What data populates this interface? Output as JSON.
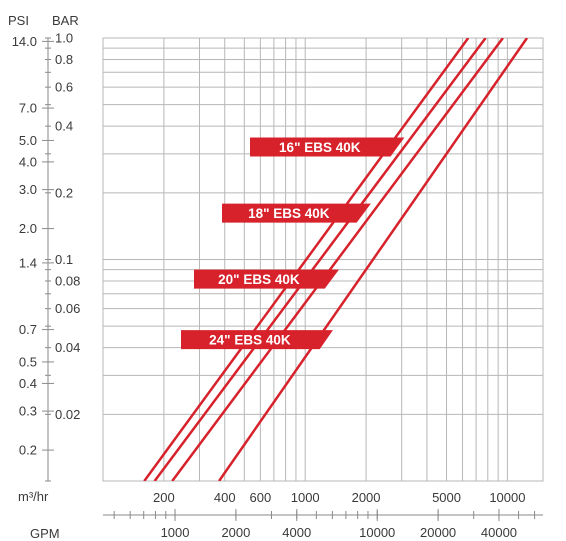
{
  "chart_data": {
    "type": "line",
    "x_scale": "log",
    "y_scale": "log",
    "grid": true,
    "x_unit_top": "m³/hr",
    "x_unit_bottom": "GPM",
    "y_unit_left": "PSI",
    "y_unit_right": "BAR",
    "xlim_m3hr": [
      100,
      15000
    ],
    "ylim_bar": [
      0.01,
      1.0
    ],
    "bar_ticks": [
      {
        "value": 1.0,
        "label": "1.0"
      },
      {
        "value": 0.8,
        "label": "0.8"
      },
      {
        "value": 0.6,
        "label": "0.6"
      },
      {
        "value": 0.4,
        "label": "0.4"
      },
      {
        "value": 0.2,
        "label": "0.2"
      },
      {
        "value": 0.1,
        "label": "0.1"
      },
      {
        "value": 0.08,
        "label": "0.08"
      },
      {
        "value": 0.06,
        "label": "0.06"
      },
      {
        "value": 0.04,
        "label": "0.04"
      },
      {
        "value": 0.02,
        "label": "0.02"
      }
    ],
    "psi_ticks": [
      {
        "value": 14.0,
        "label": "14.0"
      },
      {
        "value": 7.0,
        "label": "7.0"
      },
      {
        "value": 5.0,
        "label": "5.0"
      },
      {
        "value": 4.0,
        "label": "4.0"
      },
      {
        "value": 3.0,
        "label": "3.0"
      },
      {
        "value": 2.0,
        "label": "2.0"
      },
      {
        "value": 1.4,
        "label": "1.4"
      },
      {
        "value": 0.7,
        "label": "0.7"
      },
      {
        "value": 0.5,
        "label": "0.5"
      },
      {
        "value": 0.4,
        "label": "0.4"
      },
      {
        "value": 0.3,
        "label": "0.3"
      },
      {
        "value": 0.2,
        "label": "0.2"
      }
    ],
    "m3hr_ticks": [
      {
        "value": 200,
        "label": "200"
      },
      {
        "value": 400,
        "label": "400"
      },
      {
        "value": 600,
        "label": "600"
      },
      {
        "value": 1000,
        "label": "1000"
      },
      {
        "value": 2000,
        "label": "2000"
      },
      {
        "value": 5000,
        "label": "5000"
      },
      {
        "value": 10000,
        "label": "10000"
      }
    ],
    "gpm_ticks": [
      {
        "value": 1000,
        "label": "1000"
      },
      {
        "value": 2000,
        "label": "2000"
      },
      {
        "value": 4000,
        "label": "4000"
      },
      {
        "value": 10000,
        "label": "10000"
      },
      {
        "value": 20000,
        "label": "20000"
      },
      {
        "value": 40000,
        "label": "40000"
      }
    ],
    "x_gridlines_m3hr": [
      100,
      200,
      300,
      400,
      500,
      600,
      700,
      800,
      900,
      1000,
      2000,
      3000,
      4000,
      5000,
      6000,
      7000,
      8000,
      9000,
      10000
    ],
    "series": [
      {
        "name": "16\" EBS 40K",
        "color": "#d7222c",
        "x": [
          160,
          6400
        ],
        "y": [
          0.01,
          1.0
        ]
      },
      {
        "name": "18\" EBS 40K",
        "color": "#d7222c",
        "x": [
          180,
          7800
        ],
        "y": [
          0.01,
          1.0
        ]
      },
      {
        "name": "20\" EBS 40K",
        "color": "#d7222c",
        "x": [
          220,
          9500
        ],
        "y": [
          0.01,
          1.0
        ]
      },
      {
        "name": "24\" EBS 40K",
        "color": "#d7222c",
        "x": [
          375,
          12500
        ],
        "y": [
          0.01,
          1.0
        ]
      }
    ]
  }
}
